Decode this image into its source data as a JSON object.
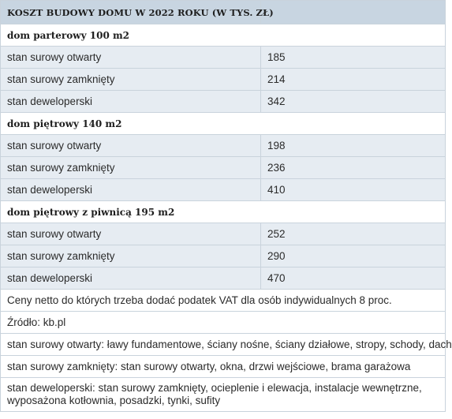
{
  "table": {
    "title": "KOSZT BUDOWY DOMU W 2022 ROKU  (W TYS. ZŁ)",
    "sections": [
      {
        "heading": "dom parterowy 100 m2",
        "rows": [
          {
            "label": "stan surowy otwarty",
            "value": "185"
          },
          {
            "label": "stan surowy zamknięty",
            "value": "214"
          },
          {
            "label": "stan deweloperski",
            "value": "342"
          }
        ]
      },
      {
        "heading": "dom piętrowy 140 m2",
        "rows": [
          {
            "label": "stan surowy otwarty",
            "value": "198"
          },
          {
            "label": "stan surowy zamknięty",
            "value": "236"
          },
          {
            "label": "stan deweloperski",
            "value": "410"
          }
        ]
      },
      {
        "heading": "dom piętrowy z piwnicą 195 m2",
        "rows": [
          {
            "label": "stan surowy otwarty",
            "value": "252"
          },
          {
            "label": "stan surowy zamknięty",
            "value": "290"
          },
          {
            "label": "stan deweloperski",
            "value": "470"
          }
        ]
      }
    ],
    "notes": [
      "Ceny netto do których trzeba dodać podatek  VAT dla osób indywidualnych 8 proc.",
      "Źródło: kb.pl",
      "stan surowy otwarty: ławy fundamentowe, ściany nośne, ściany działowe, stropy, schody, dach",
      "stan surowy zamknięty: stan surowy otwarty, okna, drzwi wejściowe, brama garażowa",
      "stan deweloperski: stan surowy zamknięty, ocieplenie i elewacja, instalacje wewnętrzne, wyposażona kotłownia, posadzki, tynki, sufity"
    ]
  }
}
